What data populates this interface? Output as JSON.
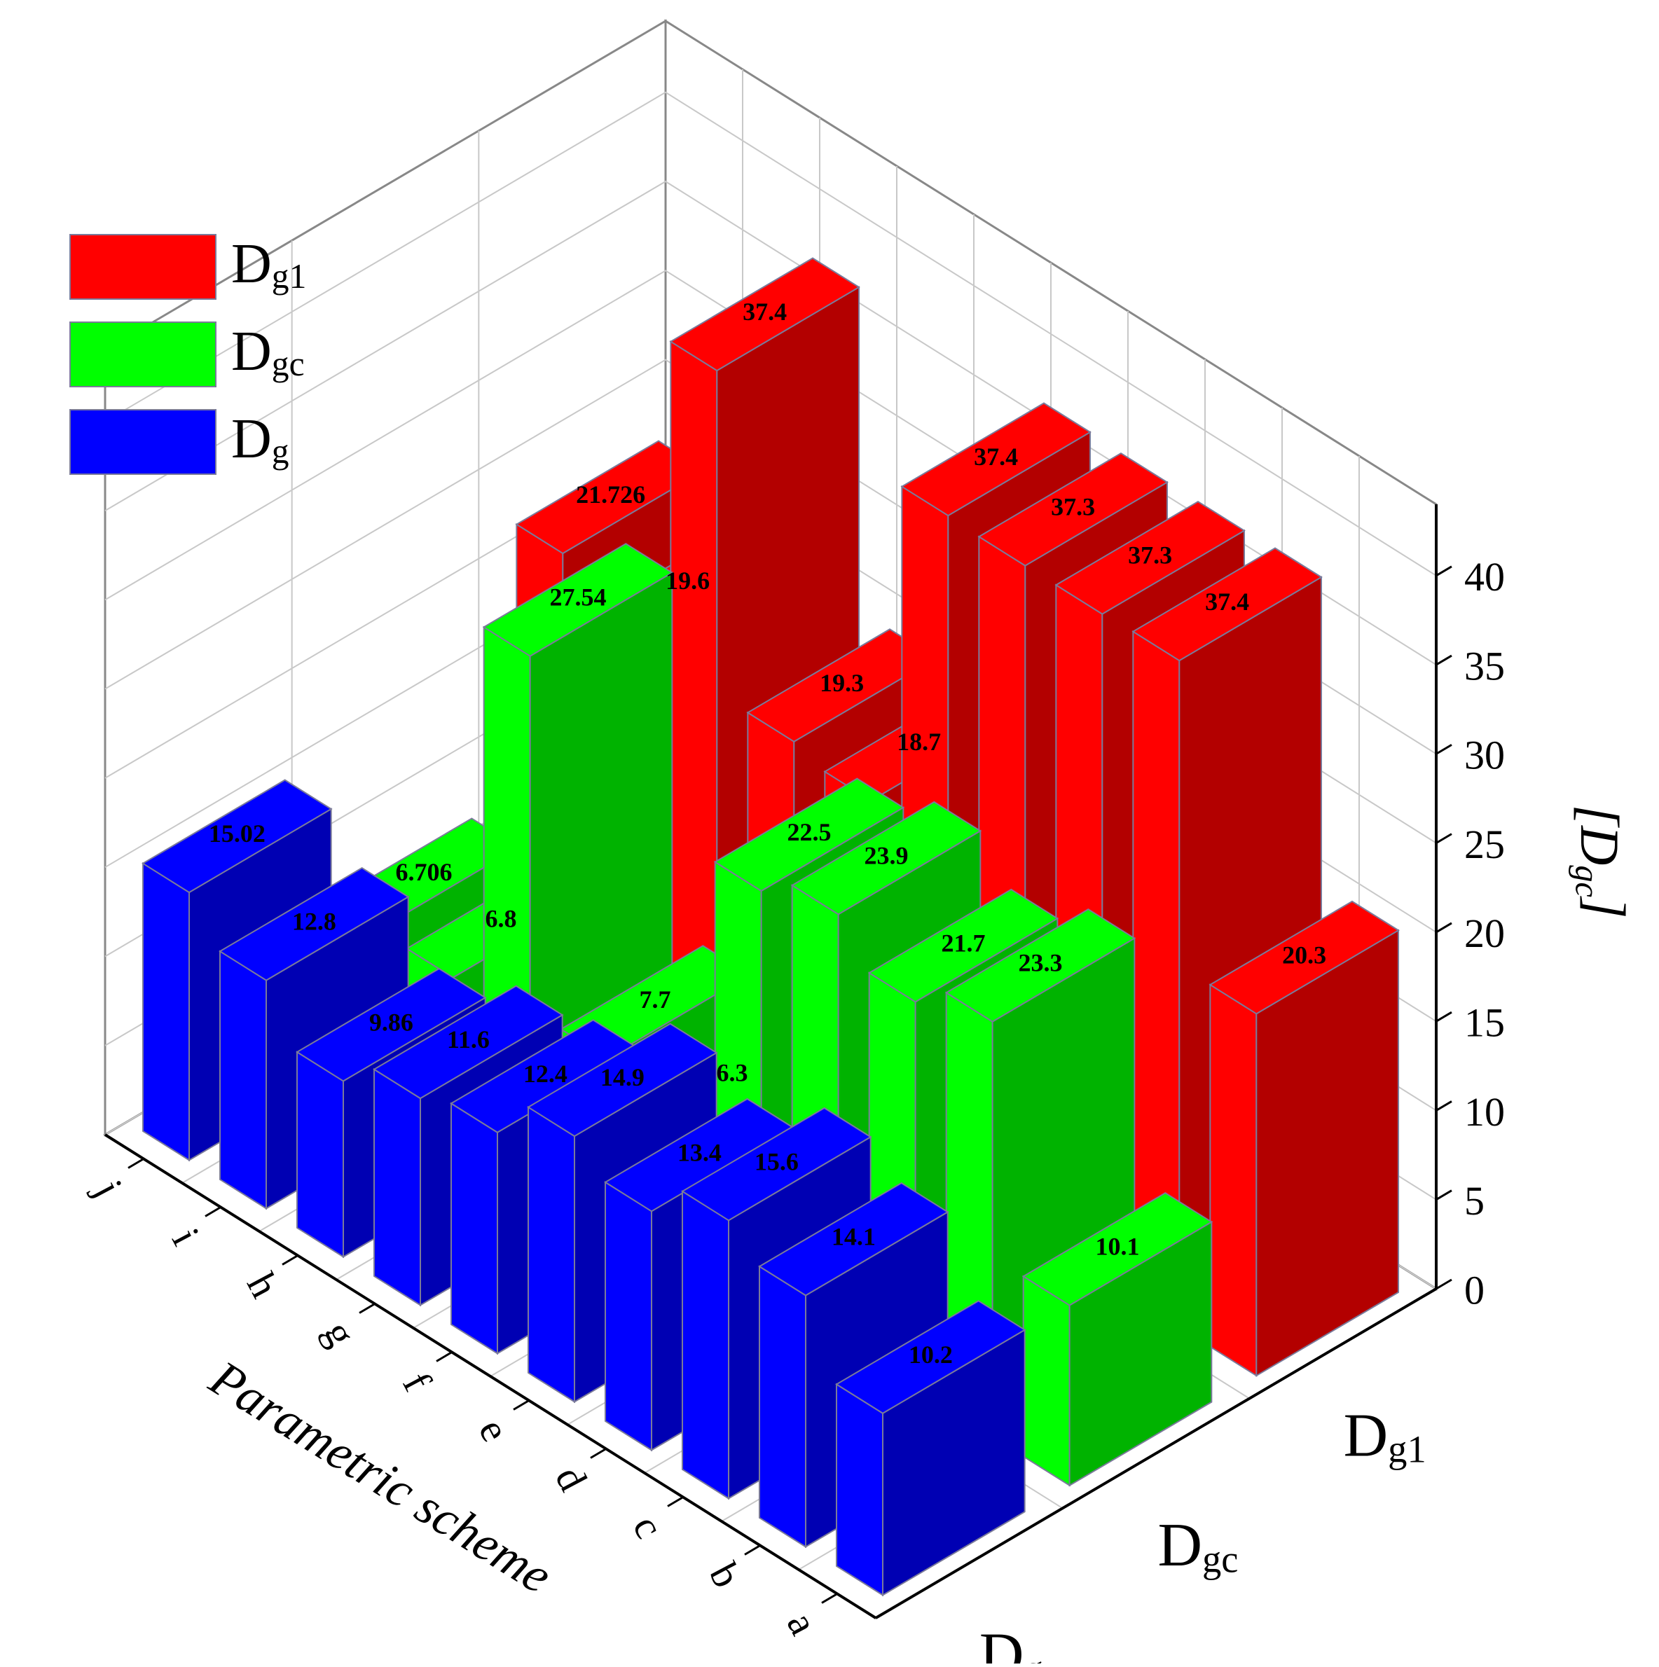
{
  "chart_data": {
    "type": "bar3d",
    "xlabel": "Parametric scheme",
    "zlabel": "[Dgc]",
    "categories": [
      "a",
      "b",
      "c",
      "d",
      "e",
      "f",
      "g",
      "h",
      "i",
      "j"
    ],
    "series": [
      {
        "name": "Dg",
        "color": "#0000ff",
        "values": [
          10.2,
          14.1,
          15.6,
          13.4,
          14.9,
          12.4,
          11.6,
          9.86,
          12.8,
          15.02
        ]
      },
      {
        "name": "Dgc",
        "color": "#00ff00",
        "values": [
          10.1,
          23.3,
          21.7,
          23.9,
          22.5,
          6.3,
          7.7,
          27.54,
          6.8,
          6.706
        ]
      },
      {
        "name": "Dg1",
        "color": "#ff0000",
        "values": [
          20.3,
          37.4,
          37.3,
          37.3,
          37.4,
          18.7,
          19.3,
          37.4,
          19.6,
          21.726
        ]
      }
    ],
    "zlim": [
      0,
      44
    ],
    "zticks": [
      0,
      5,
      10,
      15,
      20,
      25,
      30,
      35,
      40
    ],
    "grid": true,
    "legend": "upper left"
  }
}
